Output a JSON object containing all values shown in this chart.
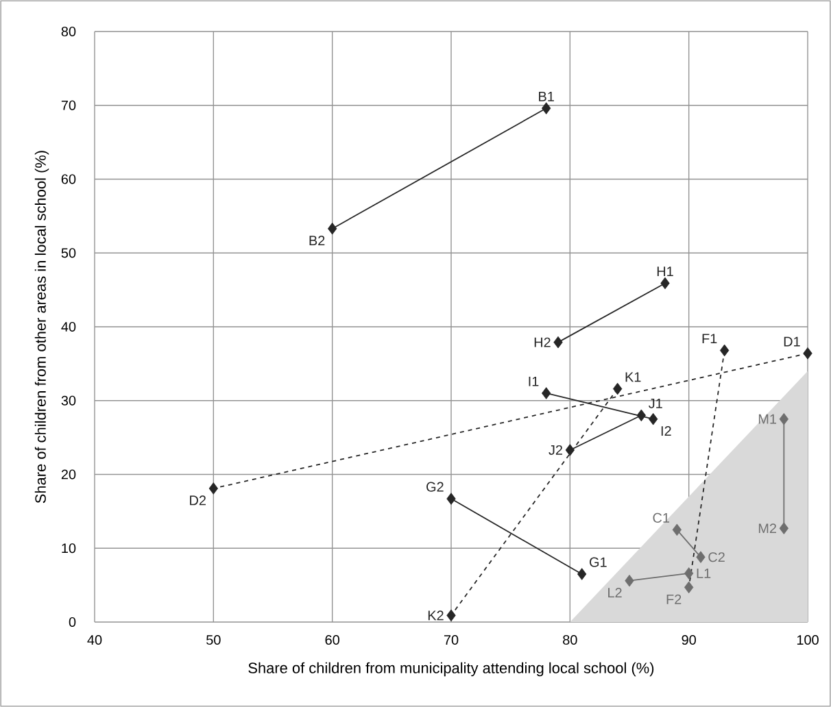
{
  "chart_data": {
    "type": "line",
    "xlabel": "Share of children from municipality attending local school (%)",
    "ylabel": "Share of children from other areas in local school (%)",
    "xlim": [
      40,
      100
    ],
    "ylim": [
      0,
      80
    ],
    "xticks": [
      40,
      50,
      60,
      70,
      80,
      90,
      100
    ],
    "yticks": [
      0,
      10,
      20,
      30,
      40,
      50,
      60,
      70,
      80
    ],
    "grid": true,
    "marker": "diamond",
    "series": [
      {
        "type": "area",
        "marker": "none",
        "color": "#d9d9d9",
        "x": [
          80,
          100
        ],
        "values": [
          0,
          34
        ]
      },
      {
        "color": "#262626",
        "line_style": "solid",
        "x": [
          78,
          60
        ],
        "values": [
          69.6,
          53.3
        ]
      },
      {
        "color": "#262626",
        "line_style": "solid",
        "x": [
          88,
          79
        ],
        "values": [
          45.9,
          37.9
        ]
      },
      {
        "color": "#262626",
        "line_style": "dashed",
        "x": [
          93,
          90
        ],
        "values": [
          36.8,
          4.7
        ],
        "colors": [
          "#262626",
          "#6e6e6e"
        ]
      },
      {
        "color": "#262626",
        "line_style": "dashed",
        "x": [
          100,
          50
        ],
        "values": [
          36.4,
          18.1
        ]
      },
      {
        "color": "#262626",
        "line_style": "dashed",
        "x": [
          84,
          70
        ],
        "values": [
          31.6,
          0.9
        ]
      },
      {
        "color": "#262626",
        "line_style": "solid",
        "x": [
          78,
          87
        ],
        "values": [
          31.0,
          27.5
        ]
      },
      {
        "color": "#262626",
        "line_style": "solid",
        "x": [
          86,
          80
        ],
        "values": [
          28.0,
          23.3
        ]
      },
      {
        "color": "#262626",
        "line_style": "solid",
        "x": [
          81,
          70
        ],
        "values": [
          6.5,
          16.7
        ]
      },
      {
        "color": "#6e6e6e",
        "line_style": "solid",
        "x": [
          89,
          91
        ],
        "values": [
          12.5,
          8.8
        ]
      },
      {
        "color": "#6e6e6e",
        "line_style": "solid",
        "x": [
          90,
          85
        ],
        "values": [
          6.6,
          5.6
        ]
      },
      {
        "color": "#6e6e6e",
        "line_style": "solid",
        "x": [
          98,
          98
        ],
        "values": [
          27.5,
          12.7
        ]
      }
    ],
    "annotations": [
      {
        "text": "B1",
        "x": 78,
        "y": 69.6
      },
      {
        "text": "B2",
        "x": 60,
        "y": 53.3
      },
      {
        "text": "H1",
        "x": 88,
        "y": 45.9
      },
      {
        "text": "H2",
        "x": 79,
        "y": 37.9
      },
      {
        "text": "F1",
        "x": 93,
        "y": 36.8
      },
      {
        "text": "F2",
        "x": 90,
        "y": 4.7
      },
      {
        "text": "D1",
        "x": 100,
        "y": 36.4
      },
      {
        "text": "D2",
        "x": 50,
        "y": 18.1
      },
      {
        "text": "K1",
        "x": 84,
        "y": 31.6
      },
      {
        "text": "K2",
        "x": 70,
        "y": 0.9
      },
      {
        "text": "I1",
        "x": 78,
        "y": 31.0
      },
      {
        "text": "I2",
        "x": 87,
        "y": 27.5
      },
      {
        "text": "J1",
        "x": 86,
        "y": 28.0
      },
      {
        "text": "J2",
        "x": 80,
        "y": 23.3
      },
      {
        "text": "G1",
        "x": 81,
        "y": 6.5
      },
      {
        "text": "G2",
        "x": 70,
        "y": 16.7
      },
      {
        "text": "C1",
        "x": 89,
        "y": 12.5
      },
      {
        "text": "C2",
        "x": 91,
        "y": 8.8
      },
      {
        "text": "L1",
        "x": 90,
        "y": 6.6
      },
      {
        "text": "L2",
        "x": 85,
        "y": 5.6
      },
      {
        "text": "M1",
        "x": 98,
        "y": 27.5
      },
      {
        "text": "M2",
        "x": 98,
        "y": 12.7
      }
    ]
  }
}
